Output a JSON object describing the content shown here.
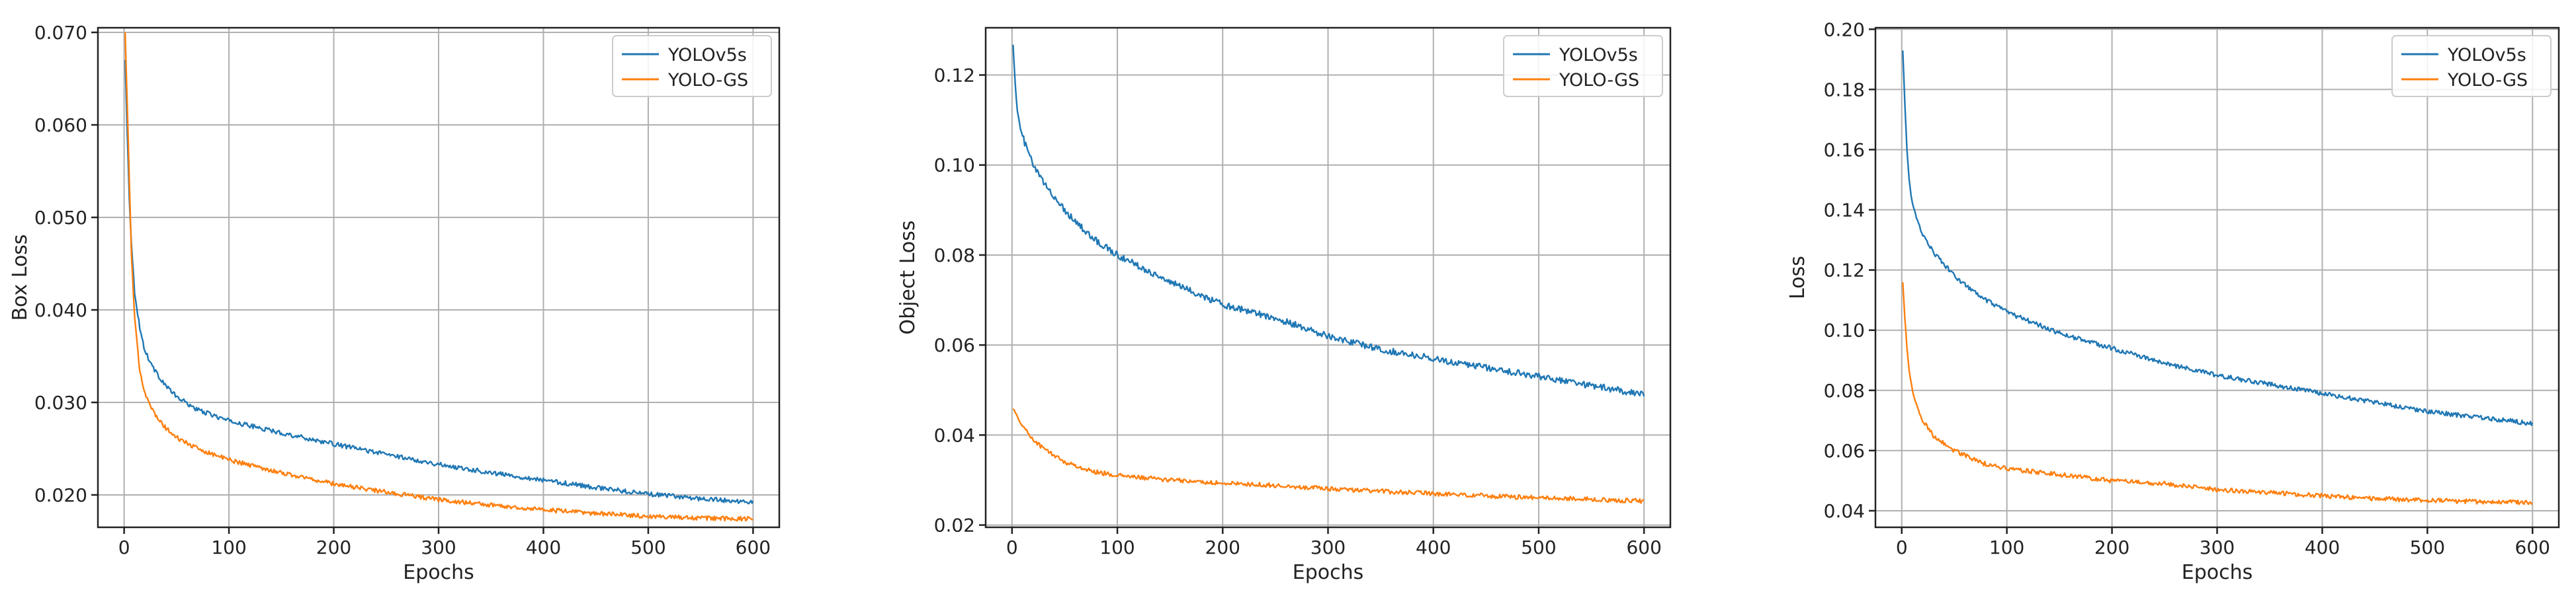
{
  "chart_data": [
    {
      "type": "line",
      "xlabel": "Epochs",
      "ylabel": "Box Loss",
      "xlim": [
        -25,
        625
      ],
      "ylim": [
        0.0165,
        0.0705
      ],
      "xticks": [
        0,
        100,
        200,
        300,
        400,
        500,
        600
      ],
      "yticks": [
        0.02,
        0.03,
        0.04,
        0.05,
        0.06,
        0.07
      ],
      "grid": true,
      "legend": "top-right",
      "series": [
        {
          "name": "YOLOv5s",
          "color": "#1f77b4",
          "x": [
            1,
            3,
            5,
            7,
            10,
            15,
            20,
            30,
            40,
            50,
            70,
            100,
            150,
            200,
            250,
            300,
            350,
            400,
            450,
            500,
            550,
            600
          ],
          "values": [
            0.067,
            0.059,
            0.052,
            0.047,
            0.042,
            0.038,
            0.0355,
            0.0333,
            0.0318,
            0.0306,
            0.0292,
            0.028,
            0.0267,
            0.0255,
            0.0244,
            0.0233,
            0.0224,
            0.0216,
            0.0208,
            0.0201,
            0.0196,
            0.0192
          ]
        },
        {
          "name": "YOLO-GS",
          "color": "#ff7f0e",
          "x": [
            1,
            3,
            5,
            7,
            10,
            15,
            20,
            30,
            40,
            50,
            70,
            100,
            150,
            200,
            250,
            300,
            350,
            400,
            450,
            500,
            550,
            600
          ],
          "values": [
            0.07,
            0.062,
            0.054,
            0.046,
            0.039,
            0.0335,
            0.031,
            0.0285,
            0.0272,
            0.0262,
            0.025,
            0.0238,
            0.0224,
            0.0212,
            0.0203,
            0.0195,
            0.0189,
            0.0184,
            0.018,
            0.0177,
            0.0175,
            0.0174
          ]
        }
      ]
    },
    {
      "type": "line",
      "xlabel": "Epochs",
      "ylabel": "Object Loss",
      "xlim": [
        -25,
        625
      ],
      "ylim": [
        0.0195,
        0.1305
      ],
      "xticks": [
        0,
        100,
        200,
        300,
        400,
        500,
        600
      ],
      "yticks": [
        0.02,
        0.04,
        0.06,
        0.08,
        0.1,
        0.12
      ],
      "grid": true,
      "legend": "top-right",
      "series": [
        {
          "name": "YOLOv5s",
          "color": "#1f77b4",
          "x": [
            1,
            3,
            5,
            8,
            12,
            20,
            30,
            50,
            75,
            100,
            150,
            200,
            250,
            300,
            350,
            400,
            450,
            500,
            550,
            600
          ],
          "values": [
            0.127,
            0.118,
            0.112,
            0.108,
            0.105,
            0.1,
            0.096,
            0.09,
            0.084,
            0.08,
            0.074,
            0.069,
            0.066,
            0.062,
            0.059,
            0.057,
            0.055,
            0.053,
            0.051,
            0.049
          ]
        },
        {
          "name": "YOLO-GS",
          "color": "#ff7f0e",
          "x": [
            1,
            3,
            5,
            10,
            20,
            30,
            50,
            75,
            100,
            150,
            200,
            250,
            300,
            350,
            400,
            450,
            500,
            550,
            600
          ],
          "values": [
            0.046,
            0.045,
            0.044,
            0.042,
            0.039,
            0.037,
            0.034,
            0.032,
            0.031,
            0.03,
            0.0293,
            0.0288,
            0.0281,
            0.0275,
            0.027,
            0.0265,
            0.0261,
            0.0257,
            0.0253
          ]
        }
      ]
    },
    {
      "type": "line",
      "xlabel": "Epochs",
      "ylabel": "Loss",
      "xlim": [
        -25,
        625
      ],
      "ylim": [
        0.0345,
        0.2005
      ],
      "xticks": [
        0,
        100,
        200,
        300,
        400,
        500,
        600
      ],
      "yticks": [
        0.04,
        0.06,
        0.08,
        0.1,
        0.12,
        0.14,
        0.16,
        0.18,
        0.2
      ],
      "grid": true,
      "legend": "top-right",
      "series": [
        {
          "name": "YOLOv5s",
          "color": "#1f77b4",
          "x": [
            1,
            3,
            5,
            7,
            10,
            15,
            20,
            30,
            50,
            75,
            100,
            150,
            200,
            250,
            300,
            350,
            400,
            450,
            500,
            550,
            600
          ],
          "values": [
            0.193,
            0.175,
            0.16,
            0.15,
            0.142,
            0.136,
            0.132,
            0.126,
            0.118,
            0.111,
            0.106,
            0.099,
            0.094,
            0.089,
            0.085,
            0.082,
            0.079,
            0.076,
            0.073,
            0.071,
            0.069
          ]
        },
        {
          "name": "YOLO-GS",
          "color": "#ff7f0e",
          "x": [
            1,
            3,
            5,
            7,
            10,
            15,
            20,
            30,
            50,
            75,
            100,
            150,
            200,
            250,
            300,
            350,
            400,
            450,
            500,
            550,
            600
          ],
          "values": [
            0.116,
            0.104,
            0.094,
            0.087,
            0.08,
            0.074,
            0.07,
            0.065,
            0.06,
            0.056,
            0.054,
            0.052,
            0.05,
            0.049,
            0.047,
            0.046,
            0.045,
            0.044,
            0.0435,
            0.043,
            0.0428
          ]
        }
      ]
    }
  ]
}
